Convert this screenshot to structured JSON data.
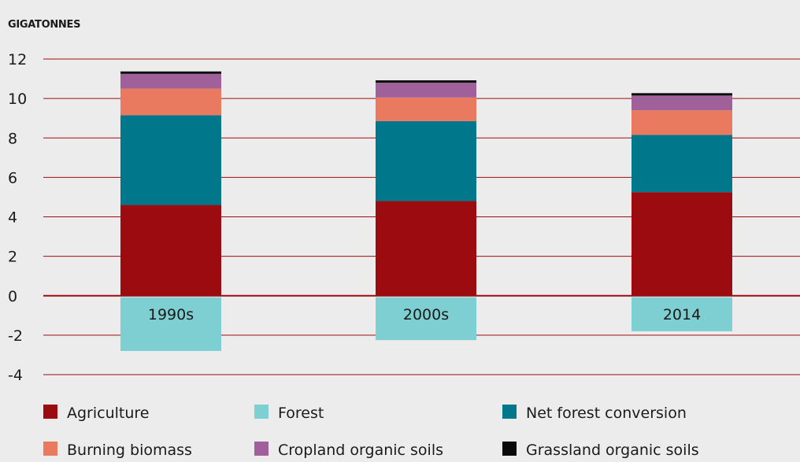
{
  "chart_data": {
    "type": "bar",
    "stacked": true,
    "ylabel": "GIGATONNES",
    "ylim": [
      -4,
      12
    ],
    "yticks": [
      -4,
      -2,
      0,
      2,
      4,
      6,
      8,
      10,
      12
    ],
    "grid": true,
    "categories": [
      "1990s",
      "2000s",
      "2014"
    ],
    "series": [
      {
        "name": "Agriculture",
        "color": "#9b0b0f",
        "values": [
          4.6,
          4.8,
          5.25
        ]
      },
      {
        "name": "Net forest conversion",
        "color": "#00778a",
        "values": [
          4.55,
          4.05,
          2.9
        ]
      },
      {
        "name": "Burning biomass",
        "color": "#ea7a5f",
        "values": [
          1.35,
          1.2,
          1.25
        ]
      },
      {
        "name": "Cropland organic soils",
        "color": "#a0609a",
        "values": [
          0.75,
          0.75,
          0.75
        ]
      },
      {
        "name": "Grassland organic soils",
        "color": "#0a0a0a",
        "values": [
          0.12,
          0.12,
          0.12
        ]
      },
      {
        "name": "Forest",
        "color": "#7dcfd1",
        "values": [
          -2.8,
          -2.25,
          -1.8
        ]
      }
    ],
    "legend": {
      "position": "bottom",
      "items": [
        "Agriculture",
        "Forest",
        "Net forest conversion",
        "Burning biomass",
        "Cropland organic soils",
        "Grassland organic soils"
      ]
    }
  },
  "colors": {
    "background": "#ececec",
    "gridline": "#9b0b0f"
  }
}
